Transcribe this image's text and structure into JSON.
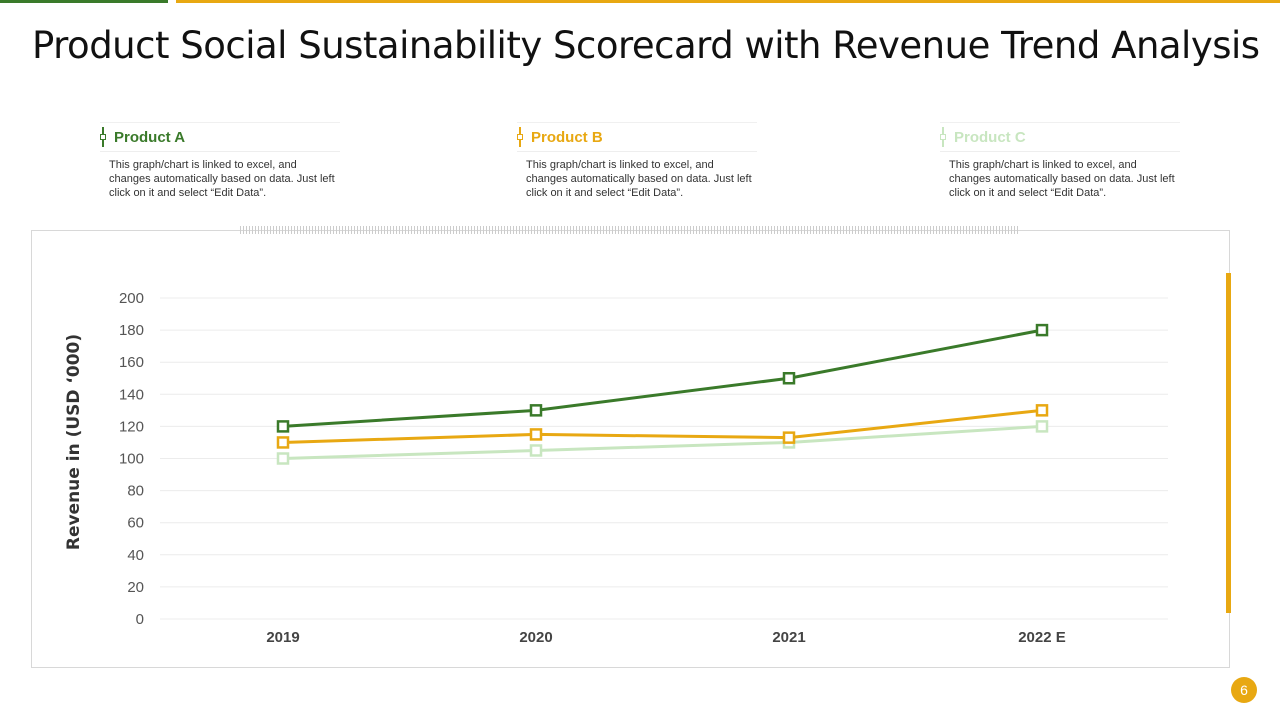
{
  "title": "Product Social Sustainability Scorecard with Revenue Trend Analysis",
  "legend": [
    {
      "name": "Product A",
      "color": "#3a7a2a",
      "desc": "This graph/chart is linked to excel, and changes automatically based on data. Just left click on it and select “Edit Data”."
    },
    {
      "name": "Product B",
      "color": "#e8a812",
      "desc": "This graph/chart is linked to excel, and changes automatically based on data. Just left click on it and select “Edit Data”."
    },
    {
      "name": "Product C",
      "color": "#c8e6c0",
      "desc": "This graph/chart is linked to excel, and changes automatically based on data. Just left click on it and select “Edit Data”."
    }
  ],
  "page_number": "6",
  "chart_data": {
    "type": "line",
    "title": "",
    "xlabel": "",
    "ylabel": "Revenue in (USD ‘000)",
    "categories": [
      "2019",
      "2020",
      "2021",
      "2022 E"
    ],
    "ylim": [
      0,
      200
    ],
    "yticks": [
      0,
      20,
      40,
      60,
      80,
      100,
      120,
      140,
      160,
      180,
      200
    ],
    "grid": true,
    "series": [
      {
        "name": "Product A",
        "color": "#3a7a2a",
        "values": [
          120,
          130,
          150,
          180
        ]
      },
      {
        "name": "Product B",
        "color": "#e8a812",
        "values": [
          110,
          115,
          113,
          130
        ]
      },
      {
        "name": "Product C",
        "color": "#c8e6c0",
        "values": [
          100,
          105,
          110,
          120
        ]
      }
    ]
  }
}
